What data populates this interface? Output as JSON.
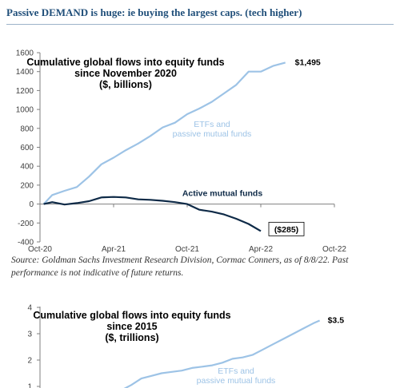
{
  "header": {
    "text": "Passive DEMAND is huge: ie buying the largest caps. (tech higher)"
  },
  "source_note": "Source: Goldman Sachs Investment Research Division, Cormac Conners, as of 8/8/22. Past performance is not indicative of future returns.",
  "colors": {
    "passive": "#9dc3e6",
    "active": "#0e2a47",
    "header": "#1f4e79"
  },
  "chart_data": [
    {
      "type": "line",
      "title_lines": [
        "Cumulative global flows into equity funds",
        "since November 2020",
        "($, billions)"
      ],
      "x_ticks": [
        "Oct-20",
        "Apr-21",
        "Oct-21",
        "Apr-22",
        "Oct-22"
      ],
      "x_range": [
        0,
        24
      ],
      "ylim": [
        -400,
        1600
      ],
      "y_ticks": [
        "-400",
        "-200",
        "0",
        "200",
        "400",
        "600",
        "800",
        "1000",
        "1200",
        "1400",
        "1600"
      ],
      "series": [
        {
          "name": "ETFs and passive mutual funds",
          "label_lines": [
            "ETFs and",
            "passive mutual funds"
          ],
          "end_label": "$1,495",
          "points": [
            [
              0.3,
              0
            ],
            [
              1,
              95
            ],
            [
              2,
              140
            ],
            [
              3,
              180
            ],
            [
              4,
              290
            ],
            [
              5,
              420
            ],
            [
              6,
              490
            ],
            [
              7,
              570
            ],
            [
              8,
              640
            ],
            [
              9,
              720
            ],
            [
              10,
              810
            ],
            [
              11,
              860
            ],
            [
              12,
              950
            ],
            [
              13,
              1010
            ],
            [
              14,
              1080
            ],
            [
              15,
              1170
            ],
            [
              16,
              1260
            ],
            [
              17,
              1400
            ],
            [
              18,
              1400
            ],
            [
              19,
              1460
            ],
            [
              20,
              1495
            ]
          ]
        },
        {
          "name": "Active mutual funds",
          "label_lines": [
            "Active mutual funds"
          ],
          "end_label": "($285)",
          "points": [
            [
              0.3,
              0
            ],
            [
              1,
              20
            ],
            [
              2,
              -5
            ],
            [
              3,
              10
            ],
            [
              4,
              30
            ],
            [
              5,
              70
            ],
            [
              6,
              75
            ],
            [
              7,
              70
            ],
            [
              8,
              50
            ],
            [
              9,
              45
            ],
            [
              10,
              35
            ],
            [
              11,
              20
            ],
            [
              12,
              0
            ],
            [
              13,
              -60
            ],
            [
              14,
              -80
            ],
            [
              15,
              -110
            ],
            [
              16,
              -155
            ],
            [
              17,
              -210
            ],
            [
              18,
              -285
            ]
          ]
        }
      ]
    },
    {
      "type": "line",
      "title_lines": [
        "Cumulative global flows into equity funds",
        "since 2015",
        "($, trillions)"
      ],
      "ylim": [
        0,
        4
      ],
      "y_ticks": [
        "1",
        "2",
        "3",
        "4"
      ],
      "x_range": [
        0,
        30
      ],
      "series": [
        {
          "name": "ETFs and passive mutual funds",
          "label_lines": [
            "ETFs and",
            "passive mutual funds"
          ],
          "end_label": "$3.5",
          "points": [
            [
              8,
              0.85
            ],
            [
              9,
              1.05
            ],
            [
              10,
              1.3
            ],
            [
              11,
              1.4
            ],
            [
              12,
              1.5
            ],
            [
              13,
              1.55
            ],
            [
              14,
              1.6
            ],
            [
              15,
              1.7
            ],
            [
              16,
              1.75
            ],
            [
              17,
              1.8
            ],
            [
              18,
              1.9
            ],
            [
              19,
              2.05
            ],
            [
              20,
              2.1
            ],
            [
              21,
              2.2
            ],
            [
              22,
              2.4
            ],
            [
              23,
              2.6
            ],
            [
              24,
              2.8
            ],
            [
              25,
              3.0
            ],
            [
              26,
              3.2
            ],
            [
              27,
              3.4
            ],
            [
              27.6,
              3.5
            ]
          ]
        }
      ]
    }
  ]
}
